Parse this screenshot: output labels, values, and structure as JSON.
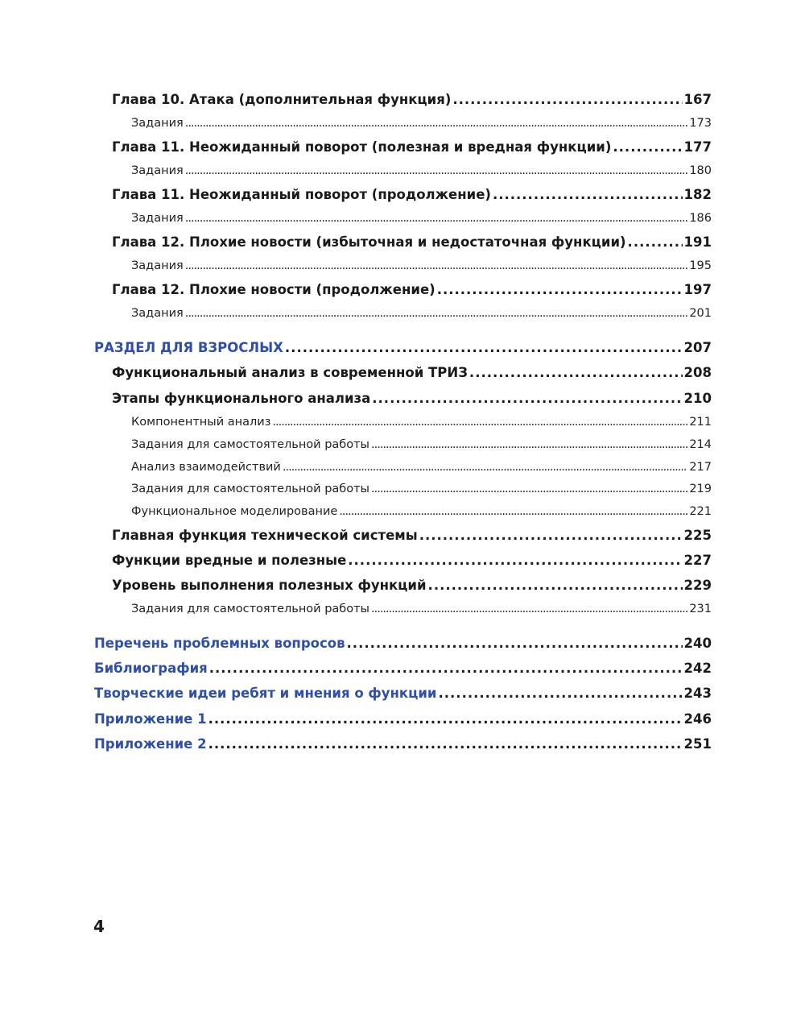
{
  "colors": {
    "section": "#2f4faa",
    "text": "#1a1a1a"
  },
  "entries": [
    {
      "level": 1,
      "title": "Глава 10. Атака (дополнительная функция)",
      "page": "167"
    },
    {
      "level": 2,
      "title": "Задания",
      "page": "173"
    },
    {
      "level": 1,
      "title": "Глава 11. Неожиданный поворот (полезная и вредная функции)",
      "page": "177"
    },
    {
      "level": 2,
      "title": "Задания",
      "page": "180"
    },
    {
      "level": 1,
      "title": "Глава 11. Неожиданный поворот (продолжение)",
      "page": "182"
    },
    {
      "level": 2,
      "title": "Задания",
      "page": "186"
    },
    {
      "level": 1,
      "title": "Глава 12. Плохие новости (избыточная и недостаточная функции)",
      "page": "191"
    },
    {
      "level": 2,
      "title": "Задания",
      "page": "195"
    },
    {
      "level": 1,
      "title": "Глава 12. Плохие новости (продолжение)",
      "page": "197"
    },
    {
      "level": 2,
      "title": "Задания",
      "page": "201"
    },
    {
      "level": 0,
      "title": "РАЗДЕЛ ДЛЯ ВЗРОСЛЫХ",
      "page": "207"
    },
    {
      "level": 1,
      "title": "Функциональный анализ в современной ТРИЗ",
      "page": "208"
    },
    {
      "level": 1,
      "title": "Этапы функционального анализа",
      "page": "210"
    },
    {
      "level": 2,
      "title": "Компонентный анализ",
      "page": "211"
    },
    {
      "level": 2,
      "title": "Задания для самостоятельной работы",
      "page": "214"
    },
    {
      "level": 2,
      "title": "Анализ взаимодействий",
      "page": "217"
    },
    {
      "level": 2,
      "title": "Задания для самостоятельной работы",
      "page": "219"
    },
    {
      "level": 2,
      "title": "Функциональное моделирование",
      "page": "221"
    },
    {
      "level": 1,
      "title": "Главная функция технической системы",
      "page": "225"
    },
    {
      "level": 1,
      "title": "Функции вредные и полезные",
      "page": "227"
    },
    {
      "level": 1,
      "title": "Уровень выполнения полезных функций",
      "page": "229"
    },
    {
      "level": 2,
      "title": "Задания для самостоятельной работы",
      "page": "231"
    },
    {
      "level": 0,
      "title": "Перечень проблемных вопросов",
      "page": "240"
    },
    {
      "level": 0,
      "title": "Библиография",
      "page": "242"
    },
    {
      "level": 0,
      "title": "Творческие идеи ребят и мнения о функции",
      "page": "243"
    },
    {
      "level": 0,
      "title": "Приложение 1",
      "page": "246"
    },
    {
      "level": 0,
      "title": "Приложение 2",
      "page": "251"
    }
  ],
  "folio": "4"
}
